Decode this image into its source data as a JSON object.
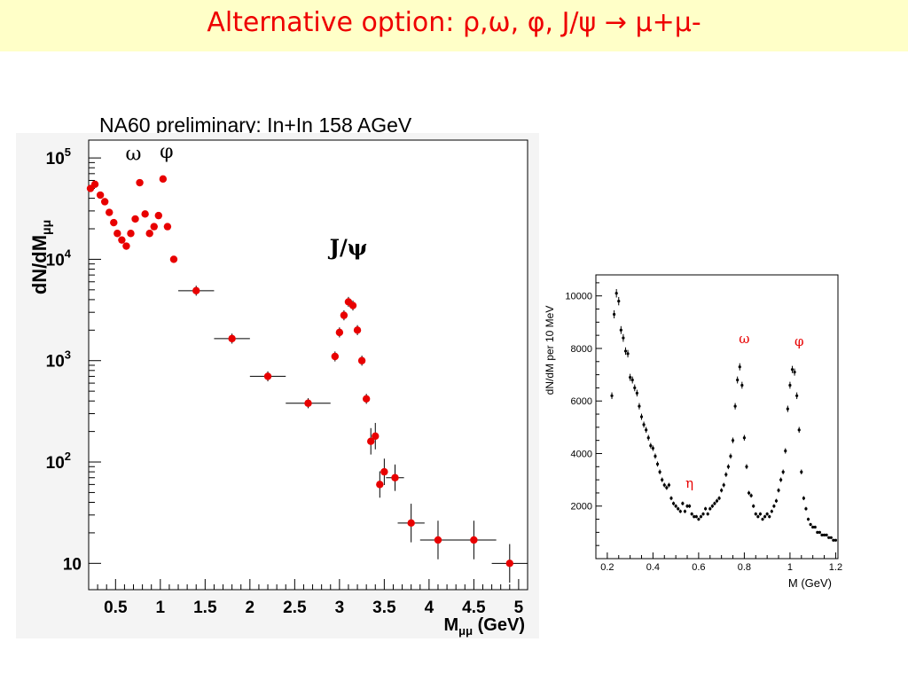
{
  "slide": {
    "title": "Alternative option:   ρ,ω, φ, J/ψ → μ+μ-"
  },
  "chart_data": [
    {
      "type": "scatter",
      "title": "NA60 preliminary: In+In 158 AGeV",
      "xlabel": "M",
      "xlabel_sub": "μμ",
      "xlabel_unit": "(GeV)",
      "ylabel": "dN/dM",
      "ylabel_sub": "μμ",
      "yscale": "log",
      "xlim": [
        0.2,
        5.1
      ],
      "ylim": [
        5.5,
        150000
      ],
      "xticks": [
        0.5,
        1,
        1.5,
        2,
        2.5,
        3,
        3.5,
        4,
        4.5,
        5
      ],
      "xtick_labels": [
        "0.5",
        "1",
        "1.5",
        "2",
        "2.5",
        "3",
        "3.5",
        "4",
        "4.5",
        "5"
      ],
      "ytick_labels": [
        {
          "value": 10,
          "base": "10",
          "exp": ""
        },
        {
          "value": 100,
          "base": "10",
          "exp": "2"
        },
        {
          "value": 1000,
          "base": "10",
          "exp": "3"
        },
        {
          "value": 10000,
          "base": "10",
          "exp": "4"
        },
        {
          "value": 100000,
          "base": "10",
          "exp": "5"
        }
      ],
      "annotations": [
        {
          "text": "ω",
          "x": 0.7,
          "y": 95000
        },
        {
          "text": "φ",
          "x": 1.07,
          "y": 100000
        },
        {
          "text": "J/ψ",
          "x": 3.1,
          "y": 11000
        }
      ],
      "color": "#e80000",
      "points": [
        {
          "x": 0.22,
          "y": 50000
        },
        {
          "x": 0.27,
          "y": 55000
        },
        {
          "x": 0.33,
          "y": 43000
        },
        {
          "x": 0.38,
          "y": 37000
        },
        {
          "x": 0.43,
          "y": 29000
        },
        {
          "x": 0.48,
          "y": 23000
        },
        {
          "x": 0.52,
          "y": 18000
        },
        {
          "x": 0.57,
          "y": 15500
        },
        {
          "x": 0.62,
          "y": 13500
        },
        {
          "x": 0.67,
          "y": 18000
        },
        {
          "x": 0.72,
          "y": 25000
        },
        {
          "x": 0.77,
          "y": 57000
        },
        {
          "x": 0.83,
          "y": 28000
        },
        {
          "x": 0.88,
          "y": 18000
        },
        {
          "x": 0.93,
          "y": 21000
        },
        {
          "x": 0.98,
          "y": 27000
        },
        {
          "x": 1.03,
          "y": 62000
        },
        {
          "x": 1.08,
          "y": 21000
        },
        {
          "x": 1.15,
          "y": 10000
        },
        {
          "x": 1.4,
          "y": 4900,
          "xerr": 0.2
        },
        {
          "x": 1.8,
          "y": 1650,
          "xerr": 0.2
        },
        {
          "x": 2.2,
          "y": 700,
          "xerr": 0.2
        },
        {
          "x": 2.65,
          "y": 380,
          "xerr": 0.25
        },
        {
          "x": 2.95,
          "y": 1100
        },
        {
          "x": 3.0,
          "y": 1900
        },
        {
          "x": 3.05,
          "y": 2800
        },
        {
          "x": 3.1,
          "y": 3800
        },
        {
          "x": 3.15,
          "y": 3500
        },
        {
          "x": 3.2,
          "y": 2000
        },
        {
          "x": 3.25,
          "y": 1000
        },
        {
          "x": 3.3,
          "y": 420
        },
        {
          "x": 3.35,
          "y": 160
        },
        {
          "x": 3.4,
          "y": 180
        },
        {
          "x": 3.45,
          "y": 60
        },
        {
          "x": 3.5,
          "y": 80
        },
        {
          "x": 3.62,
          "y": 70,
          "xerr": 0.1
        },
        {
          "x": 3.8,
          "y": 25,
          "xerr": 0.15
        },
        {
          "x": 4.1,
          "y": 17,
          "xerr": 0.2
        },
        {
          "x": 4.5,
          "y": 17,
          "xerr": 0.25
        },
        {
          "x": 4.9,
          "y": 10,
          "xerr": 0.2
        }
      ]
    },
    {
      "type": "scatter",
      "xlabel": "M (GeV)",
      "ylabel": "dN/dM per 10 MeV",
      "xlim": [
        0.15,
        1.21
      ],
      "ylim": [
        0,
        10800
      ],
      "xticks": [
        0.2,
        0.4,
        0.6,
        0.8,
        1,
        1.2
      ],
      "xtick_labels": [
        "0.2",
        "0.4",
        "0.6",
        "0.8",
        "1",
        "1.2"
      ],
      "yticks": [
        2000,
        4000,
        6000,
        8000,
        10000
      ],
      "ytick_labels": [
        "2000",
        "4000",
        "6000",
        "8000",
        "10000"
      ],
      "annotations": [
        {
          "text": "η",
          "x": 0.56,
          "y": 2700
        },
        {
          "text": "ω",
          "x": 0.8,
          "y": 8200
        },
        {
          "text": "φ",
          "x": 1.04,
          "y": 8100
        }
      ],
      "annotation_color": "#e80000",
      "points": [
        [
          0.22,
          6200
        ],
        [
          0.23,
          9300
        ],
        [
          0.24,
          10100
        ],
        [
          0.25,
          9800
        ],
        [
          0.26,
          8700
        ],
        [
          0.27,
          8400
        ],
        [
          0.28,
          7900
        ],
        [
          0.29,
          7800
        ],
        [
          0.3,
          6900
        ],
        [
          0.31,
          6800
        ],
        [
          0.32,
          6500
        ],
        [
          0.33,
          6300
        ],
        [
          0.34,
          5800
        ],
        [
          0.35,
          5400
        ],
        [
          0.36,
          5100
        ],
        [
          0.37,
          4900
        ],
        [
          0.38,
          4600
        ],
        [
          0.39,
          4300
        ],
        [
          0.4,
          4200
        ],
        [
          0.41,
          3900
        ],
        [
          0.42,
          3600
        ],
        [
          0.43,
          3300
        ],
        [
          0.44,
          3000
        ],
        [
          0.45,
          2800
        ],
        [
          0.46,
          2700
        ],
        [
          0.47,
          2800
        ],
        [
          0.48,
          2300
        ],
        [
          0.49,
          2100
        ],
        [
          0.5,
          2000
        ],
        [
          0.51,
          1900
        ],
        [
          0.52,
          1800
        ],
        [
          0.53,
          2100
        ],
        [
          0.54,
          1800
        ],
        [
          0.55,
          2000
        ],
        [
          0.56,
          2000
        ],
        [
          0.57,
          1700
        ],
        [
          0.58,
          1600
        ],
        [
          0.59,
          1600
        ],
        [
          0.6,
          1500
        ],
        [
          0.61,
          1600
        ],
        [
          0.62,
          1700
        ],
        [
          0.63,
          1900
        ],
        [
          0.64,
          1700
        ],
        [
          0.65,
          1900
        ],
        [
          0.66,
          2000
        ],
        [
          0.67,
          2100
        ],
        [
          0.68,
          2200
        ],
        [
          0.69,
          2300
        ],
        [
          0.7,
          2600
        ],
        [
          0.71,
          2800
        ],
        [
          0.72,
          3200
        ],
        [
          0.73,
          3500
        ],
        [
          0.74,
          3900
        ],
        [
          0.75,
          4500
        ],
        [
          0.76,
          5800
        ],
        [
          0.77,
          6800
        ],
        [
          0.78,
          7300
        ],
        [
          0.79,
          6600
        ],
        [
          0.8,
          4600
        ],
        [
          0.81,
          3500
        ],
        [
          0.82,
          2500
        ],
        [
          0.83,
          2400
        ],
        [
          0.84,
          2000
        ],
        [
          0.85,
          1700
        ],
        [
          0.86,
          1600
        ],
        [
          0.87,
          1700
        ],
        [
          0.88,
          1500
        ],
        [
          0.89,
          1600
        ],
        [
          0.9,
          1700
        ],
        [
          0.91,
          1600
        ],
        [
          0.92,
          1800
        ],
        [
          0.93,
          2000
        ],
        [
          0.94,
          2200
        ],
        [
          0.95,
          2600
        ],
        [
          0.96,
          3000
        ],
        [
          0.97,
          3300
        ],
        [
          0.98,
          4100
        ],
        [
          0.99,
          5700
        ],
        [
          1.0,
          6600
        ],
        [
          1.01,
          7200
        ],
        [
          1.02,
          7100
        ],
        [
          1.03,
          6200
        ],
        [
          1.04,
          4900
        ],
        [
          1.05,
          3300
        ],
        [
          1.06,
          2300
        ],
        [
          1.07,
          1900
        ],
        [
          1.08,
          1500
        ],
        [
          1.09,
          1300
        ],
        [
          1.1,
          1200
        ],
        [
          1.11,
          1200
        ],
        [
          1.12,
          1000
        ],
        [
          1.13,
          1000
        ],
        [
          1.14,
          900
        ],
        [
          1.15,
          900
        ],
        [
          1.16,
          900
        ],
        [
          1.17,
          800
        ],
        [
          1.18,
          800
        ],
        [
          1.19,
          700
        ],
        [
          1.2,
          700
        ]
      ]
    }
  ]
}
